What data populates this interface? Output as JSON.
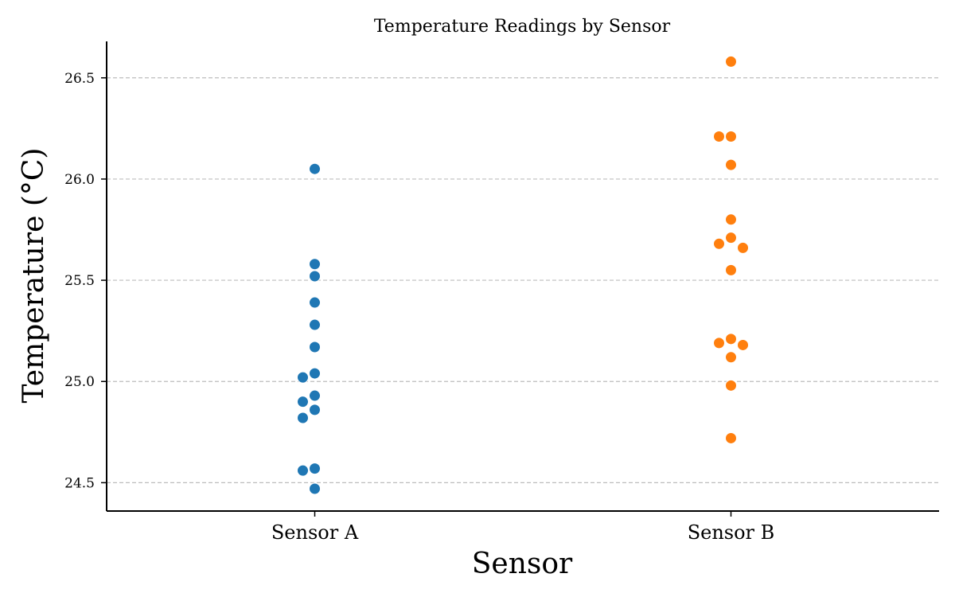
{
  "chart_data": {
    "type": "scatter",
    "title": "Temperature Readings by Sensor",
    "xlabel": "Sensor",
    "ylabel": "Temperature (°C)",
    "categories": [
      "Sensor A",
      "Sensor B"
    ],
    "ylim": [
      24.36,
      26.68
    ],
    "yticks": [
      24.5,
      25.0,
      25.5,
      26.0,
      26.5
    ],
    "grid": "y-dashed",
    "series": [
      {
        "category": "Sensor A",
        "color": "#1f77b4",
        "values": [
          26.05,
          25.58,
          25.52,
          25.39,
          25.28,
          25.17,
          25.04,
          25.02,
          24.93,
          24.9,
          24.86,
          24.82,
          24.57,
          24.56,
          24.47
        ]
      },
      {
        "category": "Sensor B",
        "color": "#ff7f0e",
        "values": [
          26.58,
          26.21,
          26.21,
          26.07,
          25.8,
          25.71,
          25.68,
          25.66,
          25.55,
          25.21,
          25.19,
          25.18,
          25.12,
          24.98,
          24.72
        ]
      }
    ]
  }
}
